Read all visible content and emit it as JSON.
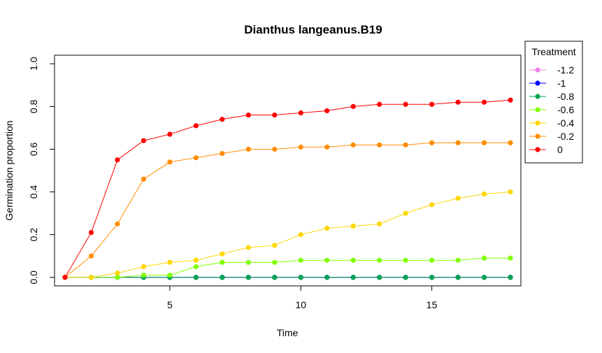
{
  "chart_data": {
    "type": "line",
    "title": "Dianthus langeanus.B19",
    "xlabel": "Time",
    "ylabel": "Germination proportion",
    "xlim": [
      0.6,
      18.4
    ],
    "ylim": [
      -0.04,
      1.04
    ],
    "xticks": [
      5,
      10,
      15
    ],
    "yticks": [
      0.0,
      0.2,
      0.4,
      0.6,
      0.8,
      1.0
    ],
    "ytick_labels": [
      "0.0",
      "0.2",
      "0.4",
      "0.6",
      "0.8",
      "1.0"
    ],
    "grid": false,
    "legend": {
      "title": "Treatment",
      "position": "right"
    },
    "x": [
      1,
      2,
      3,
      4,
      5,
      6,
      7,
      8,
      9,
      10,
      11,
      12,
      13,
      14,
      15,
      16,
      17,
      18
    ],
    "series": [
      {
        "name": "-1.2",
        "color": "#ee82ee",
        "values": [
          0,
          0,
          0,
          0,
          0,
          0,
          0,
          0,
          0,
          0,
          0,
          0,
          0,
          0,
          0,
          0,
          0,
          0
        ]
      },
      {
        "name": "-1",
        "color": "#0000ff",
        "values": [
          0,
          0,
          0,
          0,
          0,
          0,
          0,
          0,
          0,
          0,
          0,
          0,
          0,
          0,
          0,
          0,
          0,
          0
        ]
      },
      {
        "name": "-0.8",
        "color": "#00a550",
        "values": [
          0,
          0,
          0,
          0,
          0,
          0,
          0,
          0,
          0,
          0,
          0,
          0,
          0,
          0,
          0,
          0,
          0,
          0
        ]
      },
      {
        "name": "-0.6",
        "color": "#7fff00",
        "values": [
          0,
          0,
          0,
          0.01,
          0.01,
          0.05,
          0.07,
          0.07,
          0.07,
          0.08,
          0.08,
          0.08,
          0.08,
          0.08,
          0.08,
          0.08,
          0.09,
          0.09
        ]
      },
      {
        "name": "-0.4",
        "color": "#ffd700",
        "values": [
          0,
          0,
          0.02,
          0.05,
          0.07,
          0.08,
          0.11,
          0.14,
          0.15,
          0.2,
          0.23,
          0.24,
          0.25,
          0.3,
          0.34,
          0.37,
          0.39,
          0.4
        ]
      },
      {
        "name": "-0.2",
        "color": "#ff8c00",
        "values": [
          0,
          0.1,
          0.25,
          0.46,
          0.54,
          0.56,
          0.58,
          0.6,
          0.6,
          0.61,
          0.61,
          0.62,
          0.62,
          0.62,
          0.63,
          0.63,
          0.63,
          0.63
        ]
      },
      {
        "name": "0",
        "color": "#ff0000",
        "values": [
          0,
          0.21,
          0.55,
          0.64,
          0.67,
          0.71,
          0.74,
          0.76,
          0.76,
          0.77,
          0.78,
          0.8,
          0.81,
          0.81,
          0.81,
          0.82,
          0.82,
          0.83
        ]
      }
    ]
  }
}
